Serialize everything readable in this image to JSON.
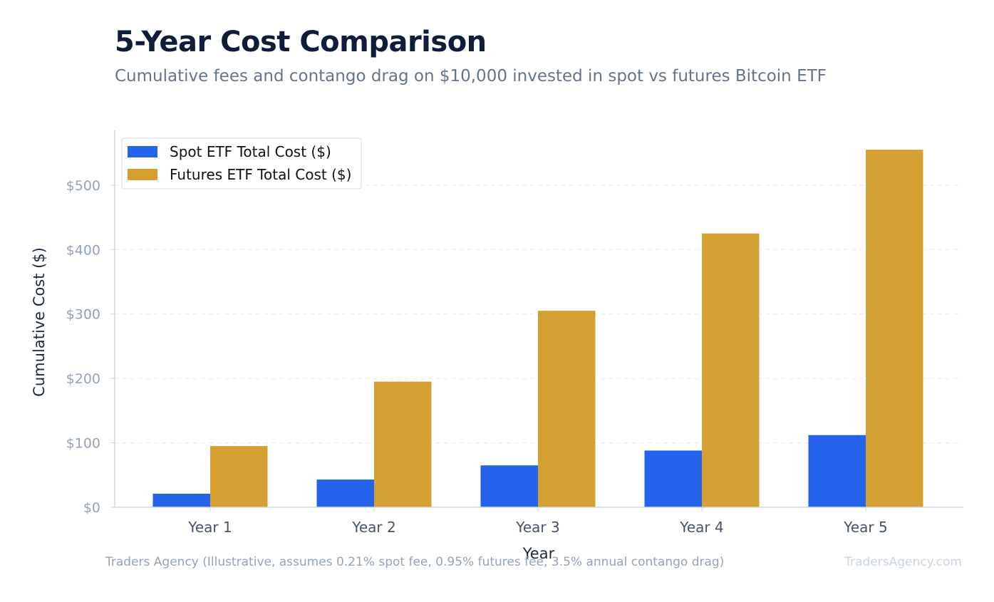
{
  "header": {
    "title": "5-Year Cost Comparison",
    "subtitle": "Cumulative fees and contango drag on $10,000 invested in spot vs futures Bitcoin ETF"
  },
  "footer": {
    "source": "Traders Agency (Illustrative, assumes 0.21% spot fee, 0.95% futures fee, 3.5% annual contango drag)",
    "watermark": "TradersAgency.com"
  },
  "chart_data": {
    "type": "bar",
    "xlabel": "Year",
    "ylabel": "Cumulative Cost ($)",
    "categories": [
      "Year 1",
      "Year 2",
      "Year 3",
      "Year 4",
      "Year 5"
    ],
    "series": [
      {
        "name": "Spot ETF Total Cost ($)",
        "color": "#2563eb",
        "values": [
          21,
          43,
          65,
          88,
          112
        ]
      },
      {
        "name": "Futures ETF Total Cost ($)",
        "color": "#d4a032",
        "values": [
          95,
          195,
          305,
          425,
          555
        ]
      }
    ],
    "ylim": [
      0,
      585
    ],
    "yticks": [
      0,
      100,
      200,
      300,
      400,
      500
    ],
    "ytick_labels": [
      "$0",
      "$100",
      "$200",
      "$300",
      "$400",
      "$500"
    ],
    "grid": true,
    "legend_position": "top-left"
  }
}
